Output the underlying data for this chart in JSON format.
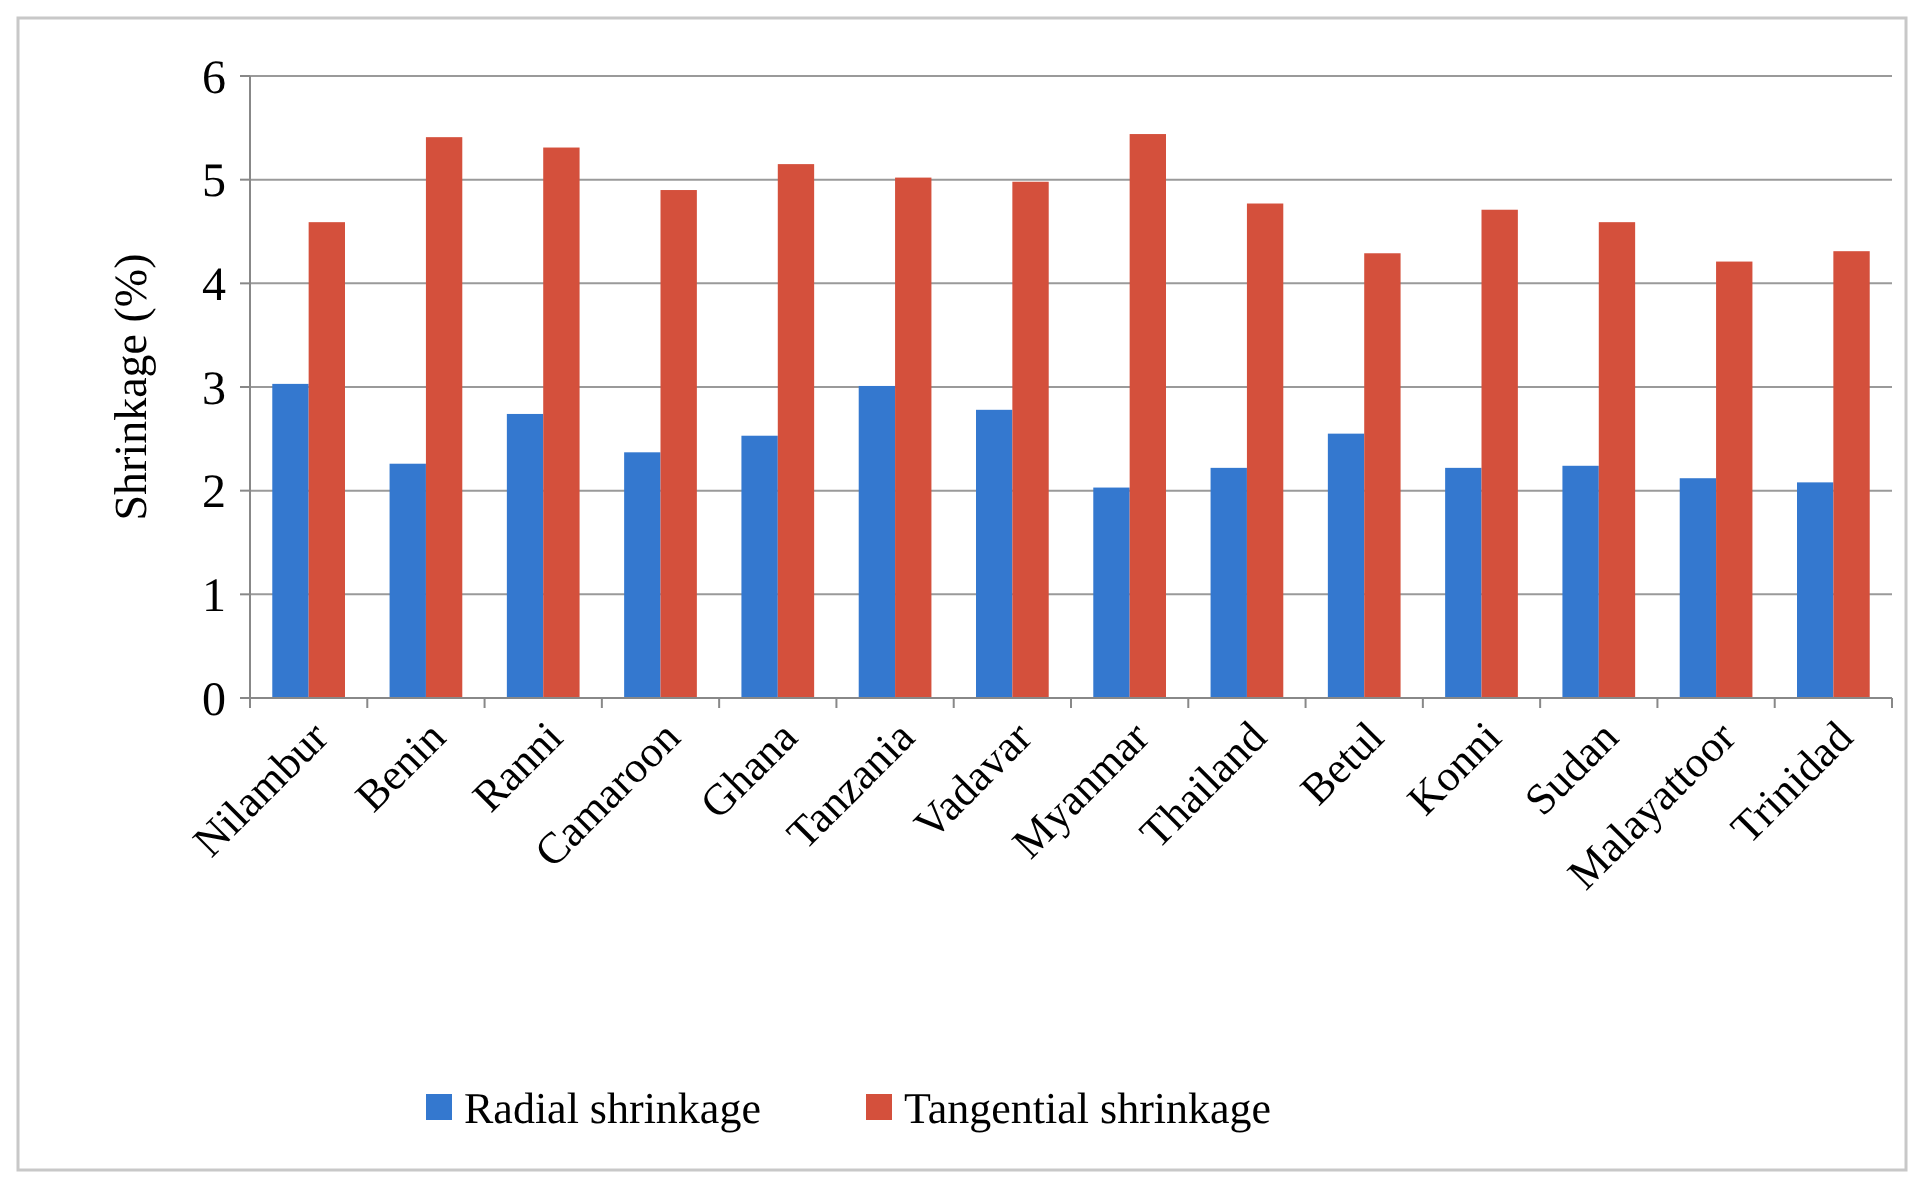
{
  "chart_data": {
    "type": "bar",
    "ylabel": "Shrinkage (%)",
    "categories": [
      "Nilambur",
      "Benin",
      "Ranni",
      "Camaroon",
      "Ghana",
      "Tanzania",
      "Vadavar",
      "Myanmar",
      "Thailand",
      "Betul",
      "Konni",
      "Sudan",
      "Malayattoor",
      "Trinidad"
    ],
    "series": [
      {
        "name": "Radial shrinkage",
        "color": "#3478cf",
        "values": [
          3.03,
          2.26,
          2.74,
          2.37,
          2.53,
          3.01,
          2.78,
          2.03,
          2.22,
          2.55,
          2.22,
          2.24,
          2.12,
          2.08
        ]
      },
      {
        "name": "Tangential shrinkage",
        "color": "#d4503c",
        "values": [
          4.59,
          5.41,
          5.31,
          4.9,
          5.15,
          5.02,
          4.98,
          5.44,
          4.77,
          4.29,
          4.71,
          4.59,
          4.21,
          4.31
        ]
      }
    ],
    "ylim": [
      0,
      6
    ],
    "yticks": [
      0,
      1,
      2,
      3,
      4,
      5,
      6
    ],
    "grid": "y",
    "legend": "bottom"
  }
}
